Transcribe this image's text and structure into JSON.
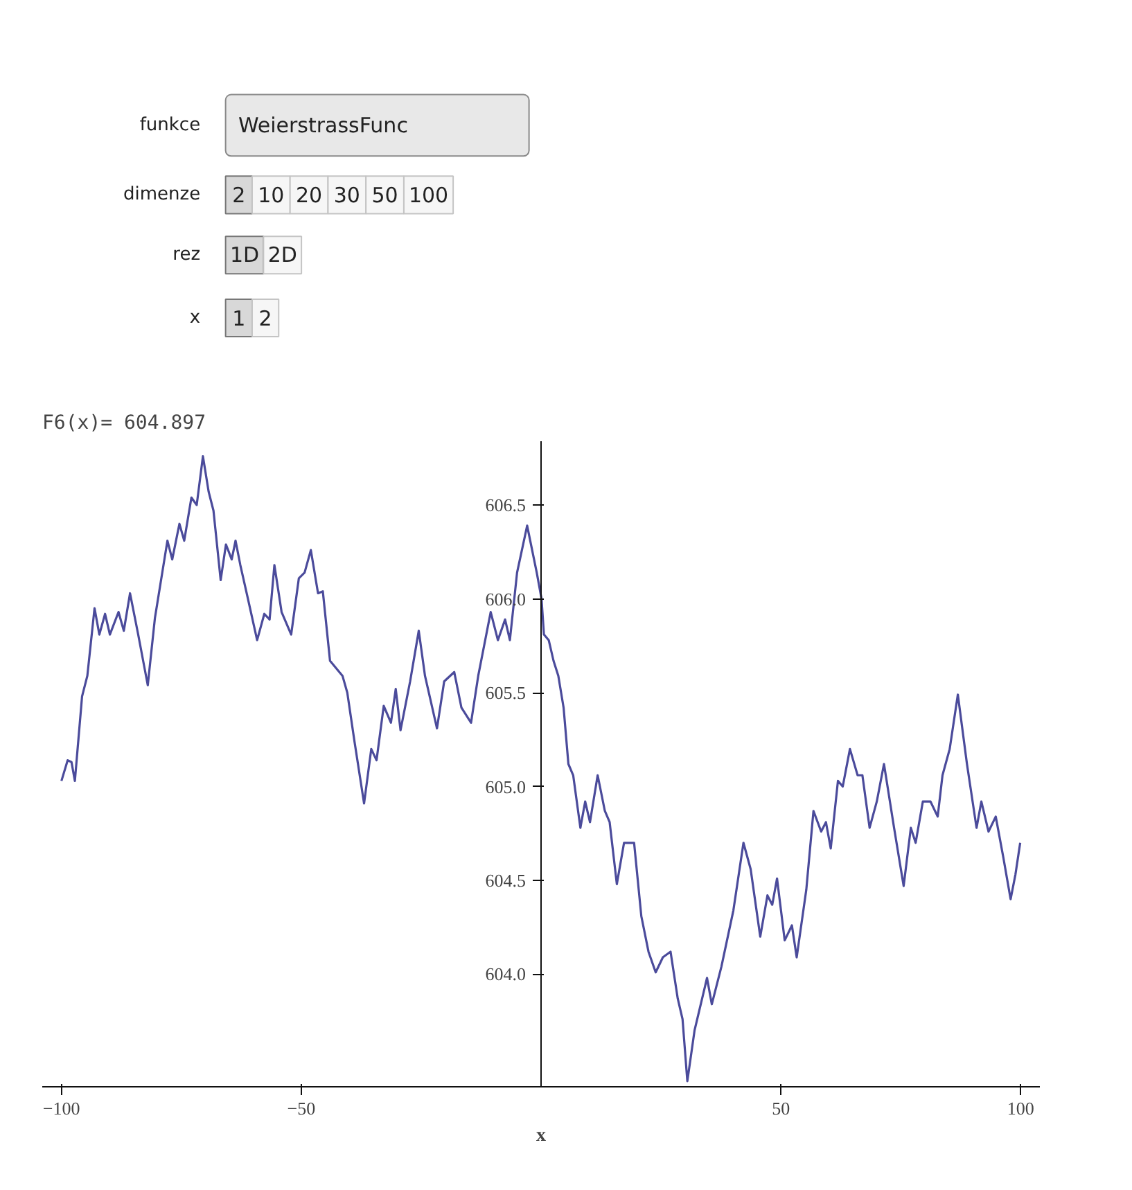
{
  "chart_data": {
    "type": "line",
    "title": "F6(x)= 604.897",
    "xlabel": "x",
    "annotations": [
      "funkce",
      "WeierstrassFunc",
      "dimenze",
      "2",
      "10",
      "20",
      "30",
      "50",
      "100",
      "rez",
      "1D",
      "2D",
      "x",
      "1",
      "2"
    ],
    "xlim": [
      -104,
      104
    ],
    "ylim": [
      603.4,
      606.84
    ],
    "xticks": [
      -100,
      -50,
      50,
      100
    ],
    "yticks": [
      {
        "value": 604,
        "label": "604.0"
      },
      {
        "value": 604.5,
        "label": "604.5"
      },
      {
        "value": 605,
        "label": "605.0"
      },
      {
        "value": 605.5,
        "label": "605.5"
      },
      {
        "value": 606,
        "label": "606.0"
      },
      {
        "value": 606.5,
        "label": "606.5"
      }
    ],
    "grid": false,
    "marker": "none",
    "line_style": "solid",
    "series": [
      {
        "color": "#4b4b9b",
        "x": [
          -100,
          -98.7,
          -97.9,
          -97.2,
          -95.7,
          -94.6,
          -93.1,
          -92.1,
          -90.9,
          -89.9,
          -88.1,
          -87.0,
          -85.7,
          -84.0,
          -82.0,
          -80.5,
          -77.9,
          -76.9,
          -75.4,
          -74.4,
          -72.9,
          -71.8,
          -70.5,
          -69.3,
          -68.3,
          -66.8,
          -65.7,
          -64.5,
          -63.7,
          -62.7,
          -61.2,
          -59.2,
          -57.7,
          -56.6,
          -55.6,
          -54.1,
          -52.1,
          -50.5,
          -49.3,
          -48.0,
          -46.5,
          -45.5,
          -44.0,
          -41.4,
          -40.4,
          -38.9,
          -36.9,
          -35.4,
          -34.3,
          -32.8,
          -31.3,
          -30.3,
          -29.3,
          -27.3,
          -25.5,
          -24.2,
          -21.7,
          -20.2,
          -18.1,
          -16.6,
          -14.6,
          -13.1,
          -10.5,
          -9.0,
          -7.5,
          -6.5,
          -5.0,
          -2.9,
          -0.9,
          0.1,
          0.6,
          1.6,
          2.6,
          3.6,
          4.7,
          5.7,
          6.7,
          8.2,
          9.2,
          10.2,
          11.8,
          13.3,
          14.3,
          15.8,
          17.3,
          19.4,
          20.9,
          22.4,
          23.9,
          25.4,
          27.0,
          28.5,
          29.5,
          30.5,
          32.0,
          34.6,
          35.6,
          37.6,
          40.1,
          42.2,
          43.7,
          45.7,
          47.2,
          48.2,
          49.2,
          50.8,
          52.3,
          53.3,
          55.3,
          56.8,
          58.4,
          59.4,
          60.4,
          61.9,
          62.9,
          64.4,
          66.0,
          67.0,
          68.5,
          70.0,
          71.5,
          73.6,
          75.6,
          77.1,
          78.1,
          79.6,
          81.2,
          82.7,
          83.7,
          85.2,
          86.9,
          88.8,
          90.8,
          91.8,
          93.3,
          94.8,
          96.4,
          97.9,
          98.9,
          99.9
        ],
        "values": [
          605.03,
          605.14,
          605.13,
          605.03,
          605.48,
          605.59,
          605.95,
          605.81,
          605.92,
          605.81,
          605.93,
          605.83,
          606.03,
          605.81,
          605.54,
          605.9,
          606.31,
          606.21,
          606.4,
          606.31,
          606.54,
          606.5,
          606.76,
          606.57,
          606.47,
          606.1,
          606.29,
          606.21,
          606.31,
          606.18,
          606.01,
          605.78,
          605.92,
          605.89,
          606.18,
          605.93,
          605.81,
          606.11,
          606.14,
          606.26,
          606.03,
          606.04,
          605.67,
          605.59,
          605.5,
          605.24,
          604.91,
          605.2,
          605.14,
          605.43,
          605.34,
          605.52,
          605.3,
          605.56,
          605.83,
          605.59,
          605.31,
          605.56,
          605.61,
          605.42,
          605.34,
          605.59,
          605.93,
          605.78,
          605.89,
          605.78,
          606.14,
          606.39,
          606.14,
          606.0,
          605.81,
          605.78,
          605.67,
          605.59,
          605.42,
          605.12,
          605.06,
          604.78,
          604.92,
          604.81,
          605.06,
          604.87,
          604.81,
          604.48,
          604.7,
          604.7,
          604.31,
          604.12,
          604.01,
          604.09,
          604.12,
          603.87,
          603.76,
          603.43,
          603.7,
          603.98,
          603.84,
          604.04,
          604.34,
          604.7,
          604.56,
          604.2,
          604.42,
          604.37,
          604.51,
          604.18,
          604.26,
          604.09,
          604.45,
          604.87,
          604.76,
          604.81,
          604.67,
          605.03,
          605.0,
          605.2,
          605.06,
          605.06,
          604.78,
          604.92,
          605.12,
          604.78,
          604.47,
          604.78,
          604.7,
          604.92,
          604.92,
          604.84,
          605.06,
          605.2,
          605.49,
          605.12,
          604.78,
          604.92,
          604.76,
          604.84,
          604.62,
          604.4,
          604.53,
          604.7
        ]
      }
    ]
  }
}
